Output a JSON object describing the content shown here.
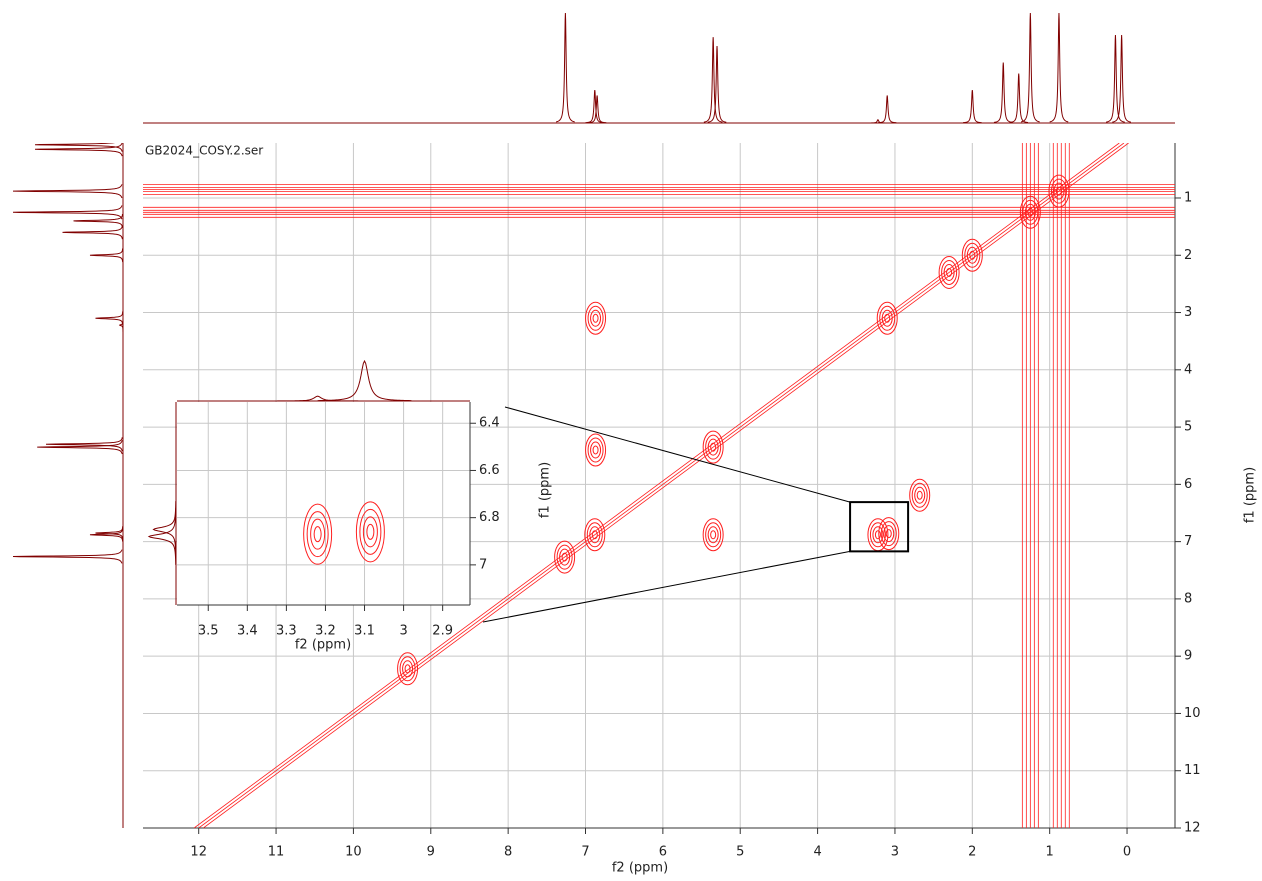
{
  "chart_data": [
    {
      "type": "contour",
      "title": "GB2024_COSY.2.ser",
      "xlabel": "f2 (ppm)",
      "ylabel": "f1 (ppm)",
      "xlim": [
        12.72,
        -0.62
      ],
      "ylim": [
        0.04,
        12
      ],
      "xticks": [
        12,
        11,
        10,
        9,
        8,
        7,
        6,
        5,
        4,
        3,
        2,
        1,
        0
      ],
      "yticks": [
        1,
        2,
        3,
        4,
        5,
        6,
        7,
        8,
        9,
        10,
        11,
        12
      ],
      "grid": true,
      "color": "#ff2020",
      "projection_color": "#800000",
      "peaks": {
        "f2": [
          7.27,
          6.88,
          6.87,
          6.87,
          5.35,
          5.35,
          3.1,
          3.08,
          3.22,
          2.68,
          2.3,
          2.0,
          1.25,
          0.88,
          9.3
        ],
        "f1": [
          7.27,
          6.88,
          5.4,
          3.1,
          5.35,
          6.88,
          3.1,
          6.86,
          6.88,
          6.19,
          2.3,
          2.0,
          1.25,
          0.88,
          9.22
        ]
      },
      "ridges": {
        "f1": [
          0.85,
          1.25
        ],
        "f2": [
          1.25,
          0.85
        ]
      },
      "projection": {
        "ppm": [
          7.26,
          6.88,
          6.85,
          5.35,
          5.3,
          3.22,
          3.1,
          2.0,
          1.6,
          1.4,
          1.25,
          0.88,
          0.15,
          0.07
        ],
        "height": [
          100,
          30,
          25,
          78,
          70,
          3,
          25,
          30,
          55,
          45,
          100,
          100,
          80,
          80
        ]
      }
    },
    {
      "type": "contour",
      "xlabel": "f2 (ppm)",
      "ylabel": "f1 (ppm)",
      "xlim": [
        3.58,
        2.83
      ],
      "ylim": [
        6.31,
        7.17
      ],
      "xticks": [
        3.5,
        3.4,
        3.3,
        3.2,
        3.1,
        3.0,
        2.9
      ],
      "yticks": [
        6.4,
        6.6,
        6.8,
        7.0
      ],
      "grid": true,
      "color": "#ff2020",
      "projection_color": "#800000",
      "peaks": {
        "f2": [
          3.22,
          3.085
        ],
        "f1": [
          6.87,
          6.86
        ]
      }
    }
  ]
}
